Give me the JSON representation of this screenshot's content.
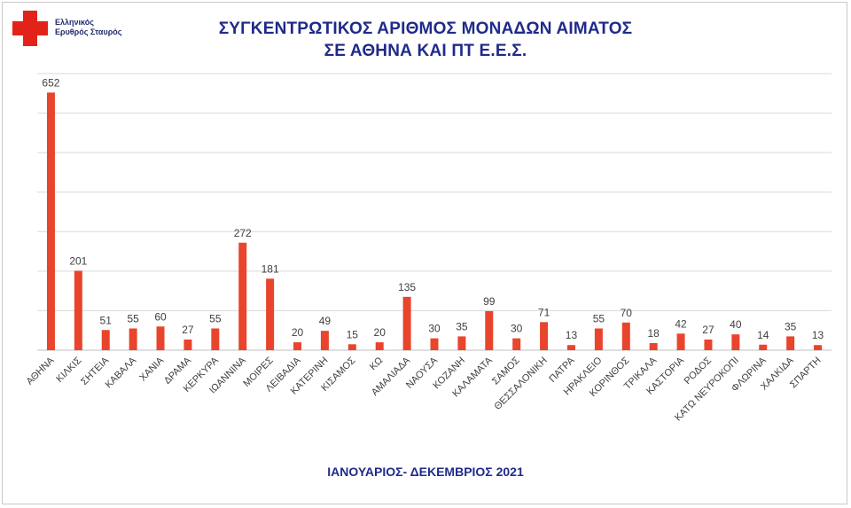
{
  "logo": {
    "line1": "Ελληνικός",
    "line2": "Ερυθρός Σταυρός"
  },
  "colors": {
    "bar": "#e8452c",
    "title": "#1f2a8a",
    "grid": "#d9d9d9"
  },
  "chart_data": {
    "type": "bar",
    "title": "ΣΥΓΚΕΝΤΡΩΤΙΚΟΣ ΑΡΙΘΜΟΣ ΜΟΝΑΔΩΝ ΑΙΜΑΤΟΣ",
    "subtitle": "ΣΕ ΑΘΗΝΑ ΚΑΙ ΠΤ Ε.Ε.Σ.",
    "xlabel": "ΙΑΝΟΥΑΡΙΟΣ- ΔΕΚΕΜΒΡΙΟΣ 2021",
    "ylabel": "",
    "ylim": [
      0,
      700
    ],
    "grid": true,
    "categories": [
      "ΑΘΗΝΑ",
      "ΚΙΛΚΙΣ",
      "ΣΗΤΕΙΑ",
      "ΚΑΒΑΛΑ",
      "ΧΑΝΙΑ",
      "ΔΡΑΜΑ",
      "ΚΕΡΚΥΡΑ",
      "ΙΩΑΝΝΙΝΑ",
      "ΜΟΙΡΕΣ",
      "ΛΕΙΒΑΔΙΑ",
      "ΚΑΤΕΡΙΝΗ",
      "ΚΙΣΑΜΟΣ",
      "ΚΩ",
      "ΑΜΑΛΙΑΔΑ",
      "ΝΑΟΥΣΑ",
      "ΚΟΖΑΝΗ",
      "ΚΑΛΑΜΑΤΑ",
      "ΣΑΜΟΣ",
      "ΘΕΣΣΑΛΟΝΙΚΗ",
      "ΠΑΤΡΑ",
      "ΗΡΑΚΛΕΙΟ",
      "ΚΟΡΙΝΘΟΣ",
      "ΤΡΙΚΑΛΑ",
      "ΚΑΣΤΟΡΙΑ",
      "ΡΟΔΟΣ",
      "ΚΑΤΩ ΝΕΥΡΟΚΟΠΙ",
      "ΦΛΩΡΙΝΑ",
      "ΧΑΛΚΙΔΑ",
      "ΣΠΑΡΤΗ"
    ],
    "values": [
      652,
      201,
      51,
      55,
      60,
      27,
      55,
      272,
      181,
      20,
      49,
      15,
      20,
      135,
      30,
      35,
      99,
      30,
      71,
      13,
      55,
      70,
      18,
      42,
      27,
      40,
      14,
      35,
      13
    ]
  }
}
